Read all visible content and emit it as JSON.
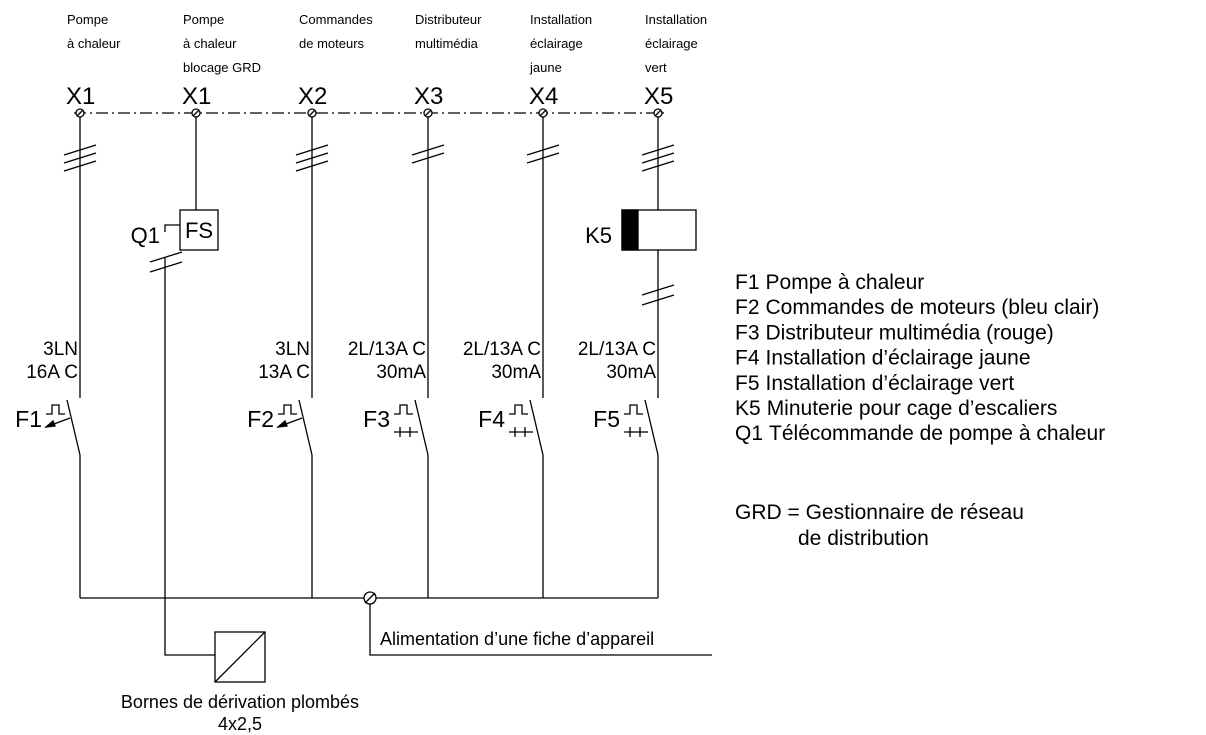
{
  "columns": [
    {
      "label": [
        "Pompe",
        "à chaleur"
      ],
      "terminal": "X1",
      "rating": [
        "3LN",
        "16A C"
      ],
      "breaker": "F1"
    },
    {
      "label": [
        "Pompe",
        "à chaleur",
        "blocage GRD"
      ],
      "terminal": "X1"
    },
    {
      "label": [
        "Commandes",
        "de moteurs"
      ],
      "terminal": "X2",
      "rating": [
        "3LN",
        "13A C"
      ],
      "breaker": "F2"
    },
    {
      "label": [
        "Distributeur",
        "multimédia"
      ],
      "terminal": "X3",
      "rating": [
        "2L/13A C",
        "30mA"
      ],
      "breaker": "F3"
    },
    {
      "label": [
        "Installation",
        "éclairage",
        "jaune"
      ],
      "terminal": "X4",
      "rating": [
        "2L/13A C",
        "30mA"
      ],
      "breaker": "F4"
    },
    {
      "label": [
        "Installation",
        "éclairage",
        "vert"
      ],
      "terminal": "X5",
      "rating": [
        "2L/13A C",
        "30mA"
      ],
      "breaker": "F5"
    }
  ],
  "devices": {
    "q1": {
      "label": "Q1",
      "box": "FS"
    },
    "k5": {
      "label": "K5"
    }
  },
  "feed": "Alimentation d’une fiche d’appareil",
  "terminal_block": [
    "Bornes de dérivation plombés",
    "4x2,5"
  ],
  "legend": [
    {
      "code": "F1",
      "text": "Pompe à chaleur"
    },
    {
      "code": "F2",
      "text": "Commandes de moteurs (bleu clair)"
    },
    {
      "code": "F3",
      "text": "Distributeur multimédia (rouge)"
    },
    {
      "code": "F4",
      "text": "Installation d’éclairage jaune"
    },
    {
      "code": "F5",
      "text": "Installation d’éclairage vert"
    },
    {
      "code": "K5",
      "text": "Minuterie pour cage d’escaliers"
    },
    {
      "code": "Q1",
      "text": "Télécommande de pompe à chaleur"
    }
  ],
  "note": [
    "GRD = Gestionnaire de réseau",
    "de distribution"
  ]
}
